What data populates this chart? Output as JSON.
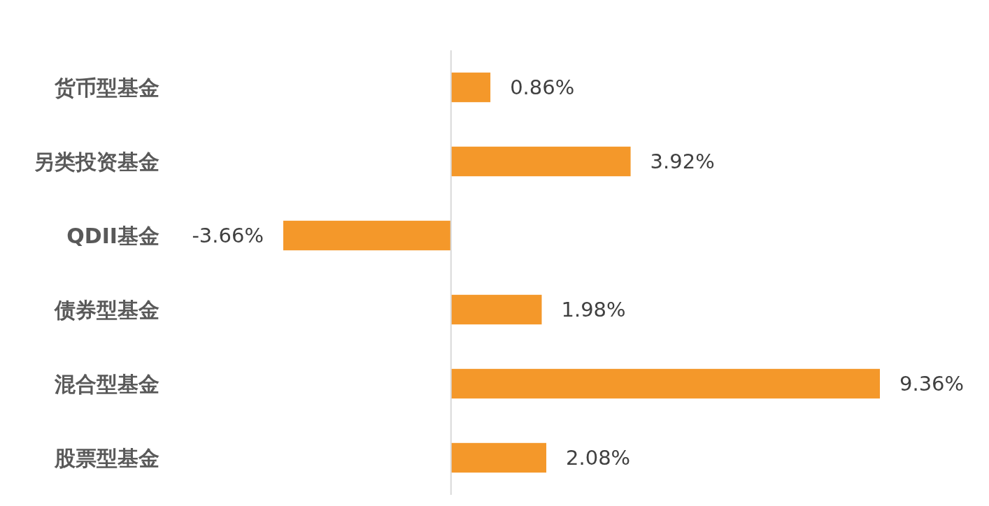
{
  "chart_data": {
    "type": "bar",
    "orientation": "horizontal",
    "categories": [
      "货币型基金",
      "另类投资基金",
      "QDII基金",
      "债券型基金",
      "混合型基金",
      "股票型基金"
    ],
    "values": [
      0.86,
      3.92,
      -3.66,
      1.98,
      9.36,
      2.08
    ],
    "value_labels": [
      "0.86%",
      "3.92%",
      "-3.66%",
      "1.98%",
      "9.36%",
      "2.08%"
    ],
    "color": "#f4982a",
    "tick_labels": "y"
  }
}
